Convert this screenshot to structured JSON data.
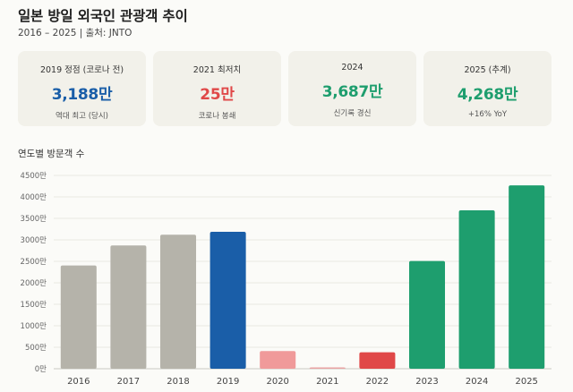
{
  "header": {
    "title": "일본 방일 외국인 관광객 추이",
    "subtitle": "2016 – 2025 | 출처: JNTO"
  },
  "cards": [
    {
      "label": "2019 정점 (코로나 전)",
      "value": "3,188만",
      "sub": "역대 최고 (당시)",
      "color": "#1a5ea8"
    },
    {
      "label": "2021 최저치",
      "value": "25만",
      "sub": "코로나 봉쇄",
      "color": "#e04848"
    },
    {
      "label": "2024",
      "value": "3,687만",
      "sub": "신기록 경신",
      "color": "#1e9e6e"
    },
    {
      "label": "2025 (추계)",
      "value": "4,268만",
      "sub": "+16% YoY",
      "color": "#1e9e6e"
    }
  ],
  "section_title": "연도별 방문객 수",
  "chart_data": {
    "type": "bar",
    "categories": [
      "2016",
      "2017",
      "2018",
      "2019",
      "2020",
      "2021",
      "2022",
      "2023",
      "2024",
      "2025"
    ],
    "values": [
      2404,
      2869,
      3119,
      3188,
      412,
      25,
      383,
      2507,
      3687,
      4268
    ],
    "colors": [
      "#b5b3aa",
      "#b5b3aa",
      "#b5b3aa",
      "#1a5ea8",
      "#f09a9a",
      "#e9a3a3",
      "#e04848",
      "#1e9e6e",
      "#1e9e6e",
      "#1e9e6e"
    ],
    "yticks": [
      "0만",
      "500만",
      "1000만",
      "1500만",
      "2000만",
      "2500만",
      "3000만",
      "3500만",
      "4000만",
      "4500만"
    ],
    "ylim": [
      0,
      4500
    ],
    "grid": true
  }
}
